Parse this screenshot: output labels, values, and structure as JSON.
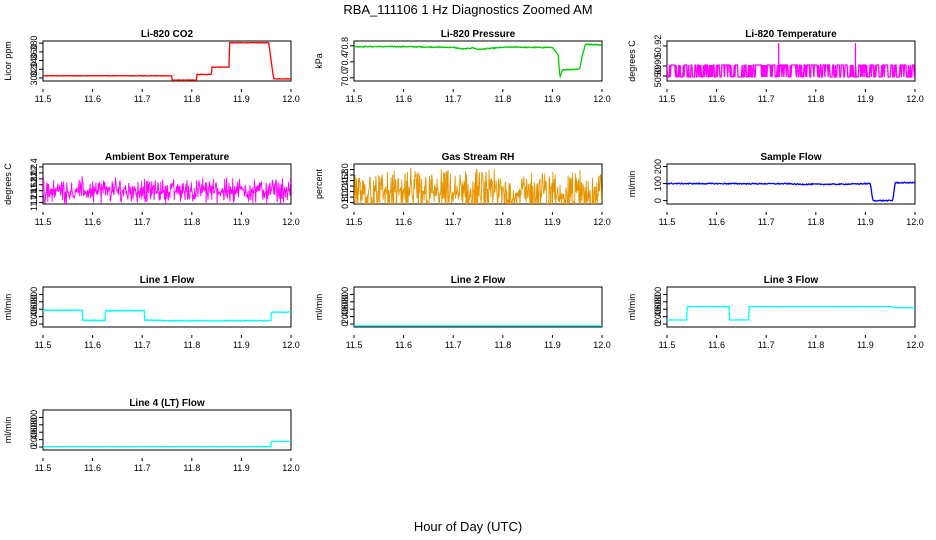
{
  "figure": {
    "title": "RBA_111106  1 Hz Diagnostics Zoomed AM",
    "xlabel": "Hour of Day (UTC)"
  },
  "chart_data": [
    {
      "type": "line",
      "title": "Li-820 CO2",
      "ylabel": "Licor ppm",
      "color": "#ff0000",
      "xlim": [
        11.5,
        12.0
      ],
      "ylim": [
        293,
        385
      ],
      "xticks": [
        "11.5",
        "11.6",
        "11.7",
        "11.8",
        "11.9",
        "12.0"
      ],
      "yticks": [
        "300",
        "320",
        "340",
        "360",
        "380"
      ],
      "noise": 0.6,
      "x": [
        11.5,
        11.76,
        11.76,
        11.81,
        11.81,
        11.84,
        11.84,
        11.875,
        11.875,
        11.955,
        11.965,
        12.0
      ],
      "y": [
        305,
        305,
        295,
        295,
        308,
        308,
        325,
        325,
        381,
        381,
        298,
        298
      ]
    },
    {
      "type": "line",
      "title": "Li-820 Pressure",
      "ylabel": "kPa",
      "color": "#00cc00",
      "xlim": [
        11.5,
        12.0
      ],
      "ylim": [
        69.92,
        70.92
      ],
      "xticks": [
        "11.5",
        "11.6",
        "11.7",
        "11.8",
        "11.9",
        "12.0"
      ],
      "yticks": [
        "70.0",
        "70.4",
        "70.8"
      ],
      "noise": 0.012,
      "x": [
        11.5,
        11.55,
        11.6,
        11.65,
        11.7,
        11.72,
        11.74,
        11.75,
        11.76,
        11.78,
        11.8,
        11.83,
        11.85,
        11.9,
        11.912,
        11.915,
        11.92,
        11.955,
        11.96,
        11.967,
        12.0
      ],
      "y": [
        70.78,
        70.78,
        70.78,
        70.77,
        70.76,
        70.72,
        70.75,
        70.71,
        70.72,
        70.74,
        70.76,
        70.77,
        70.76,
        70.76,
        70.55,
        70.0,
        70.2,
        70.22,
        70.55,
        70.84,
        70.82
      ]
    },
    {
      "type": "line",
      "title": "Li-820 Temperature",
      "ylabel": "degrees C",
      "color": "#ff00ff",
      "xlim": [
        11.5,
        12.0
      ],
      "ylim": [
        50.885,
        50.925
      ],
      "xticks": [
        "11.5",
        "11.6",
        "11.7",
        "11.8",
        "11.9",
        "12.0"
      ],
      "yticks": [
        "50.89",
        "50.90",
        "50.92"
      ],
      "base": 50.901,
      "low": 50.889,
      "spikes": [
        [
          11.725,
          50.923
        ],
        [
          11.88,
          50.923
        ]
      ]
    },
    {
      "type": "line",
      "title": "Ambient Box Temperature",
      "ylabel": "degrees C",
      "color": "#ff00ff",
      "xlim": [
        11.5,
        12.0
      ],
      "ylim": [
        11.15,
        12.5
      ],
      "xticks": [
        "11.5",
        "11.6",
        "11.7",
        "11.8",
        "11.9",
        "12.0"
      ],
      "yticks": [
        "11.2",
        "11.4",
        "11.6",
        "11.8",
        "12.0",
        "12.2",
        "12.4"
      ],
      "center": 11.6,
      "spread": 0.5
    },
    {
      "type": "line",
      "title": "Gas Stream RH",
      "ylabel": "percent",
      "color": "#e69500",
      "xlim": [
        11.5,
        12.0
      ],
      "ylim": [
        0.75,
        2.2
      ],
      "xticks": [
        "11.5",
        "11.6",
        "11.7",
        "11.8",
        "11.9",
        "12.0"
      ],
      "yticks": [
        "0.8",
        "1.0",
        "1.2",
        "1.4",
        "1.6",
        "1.8",
        "2.0"
      ],
      "center": 1.15,
      "spread": 1.0
    },
    {
      "type": "line",
      "title": "Sample Flow",
      "ylabel": "ml/min",
      "color": "#0000ff",
      "xlim": [
        11.5,
        12.0
      ],
      "ylim": [
        -20,
        215
      ],
      "xticks": [
        "11.5",
        "11.6",
        "11.7",
        "11.8",
        "11.9",
        "12.0"
      ],
      "yticks": [
        "0",
        "100",
        "200"
      ],
      "noise": 3,
      "x": [
        11.5,
        11.75,
        11.76,
        11.85,
        11.91,
        11.915,
        11.955,
        11.96,
        12.0
      ],
      "y": [
        100,
        99,
        96,
        96,
        100,
        0,
        0,
        105,
        105
      ]
    },
    {
      "type": "line",
      "title": "Line 1 Flow",
      "ylabel": "ml/min",
      "color": "#00ffff",
      "xlim": [
        11.5,
        12.0
      ],
      "ylim": [
        -80,
        1000
      ],
      "xticks": [
        "11.5",
        "11.6",
        "11.7",
        "11.8",
        "11.9",
        "12.0"
      ],
      "yticks": [
        "0",
        "200",
        "400",
        "600",
        "800"
      ],
      "noise": 12,
      "x": [
        11.5,
        11.58,
        11.58,
        11.625,
        11.625,
        11.705,
        11.705,
        11.75,
        11.96,
        11.96,
        12.0
      ],
      "y": [
        370,
        370,
        100,
        100,
        360,
        360,
        110,
        90,
        90,
        320,
        320
      ]
    },
    {
      "type": "line",
      "title": "Line 2 Flow",
      "ylabel": "ml/min",
      "color": "#00ffff",
      "xlim": [
        11.5,
        12.0
      ],
      "ylim": [
        -80,
        1000
      ],
      "xticks": [
        "11.5",
        "11.6",
        "11.7",
        "11.8",
        "11.9",
        "12.0"
      ],
      "yticks": [
        "0",
        "200",
        "400",
        "600",
        "800"
      ],
      "noise": 0,
      "x": [
        11.5,
        12.0
      ],
      "y": [
        -50,
        -50
      ]
    },
    {
      "type": "line",
      "title": "Line 3 Flow",
      "ylabel": "ml/min",
      "color": "#00ffff",
      "xlim": [
        11.5,
        12.0
      ],
      "ylim": [
        -80,
        1000
      ],
      "xticks": [
        "11.5",
        "11.6",
        "11.7",
        "11.8",
        "11.9",
        "12.0"
      ],
      "yticks": [
        "0",
        "200",
        "400",
        "600",
        "800"
      ],
      "noise": 4,
      "x": [
        11.5,
        11.54,
        11.54,
        11.625,
        11.625,
        11.665,
        11.665,
        11.955,
        11.96,
        12.0
      ],
      "y": [
        110,
        110,
        470,
        470,
        110,
        110,
        470,
        470,
        440,
        440
      ]
    },
    {
      "type": "line",
      "title": "Line 4 (LT) Flow",
      "ylabel": "ml/min",
      "color": "#00ffff",
      "xlim": [
        11.5,
        12.0
      ],
      "ylim": [
        -80,
        1000
      ],
      "xticks": [
        "11.5",
        "11.6",
        "11.7",
        "11.8",
        "11.9",
        "12.0"
      ],
      "yticks": [
        "0",
        "200",
        "400",
        "600",
        "800"
      ],
      "noise": 2,
      "x": [
        11.5,
        11.96,
        11.96,
        12.0
      ],
      "y": [
        10,
        10,
        150,
        150
      ]
    }
  ]
}
